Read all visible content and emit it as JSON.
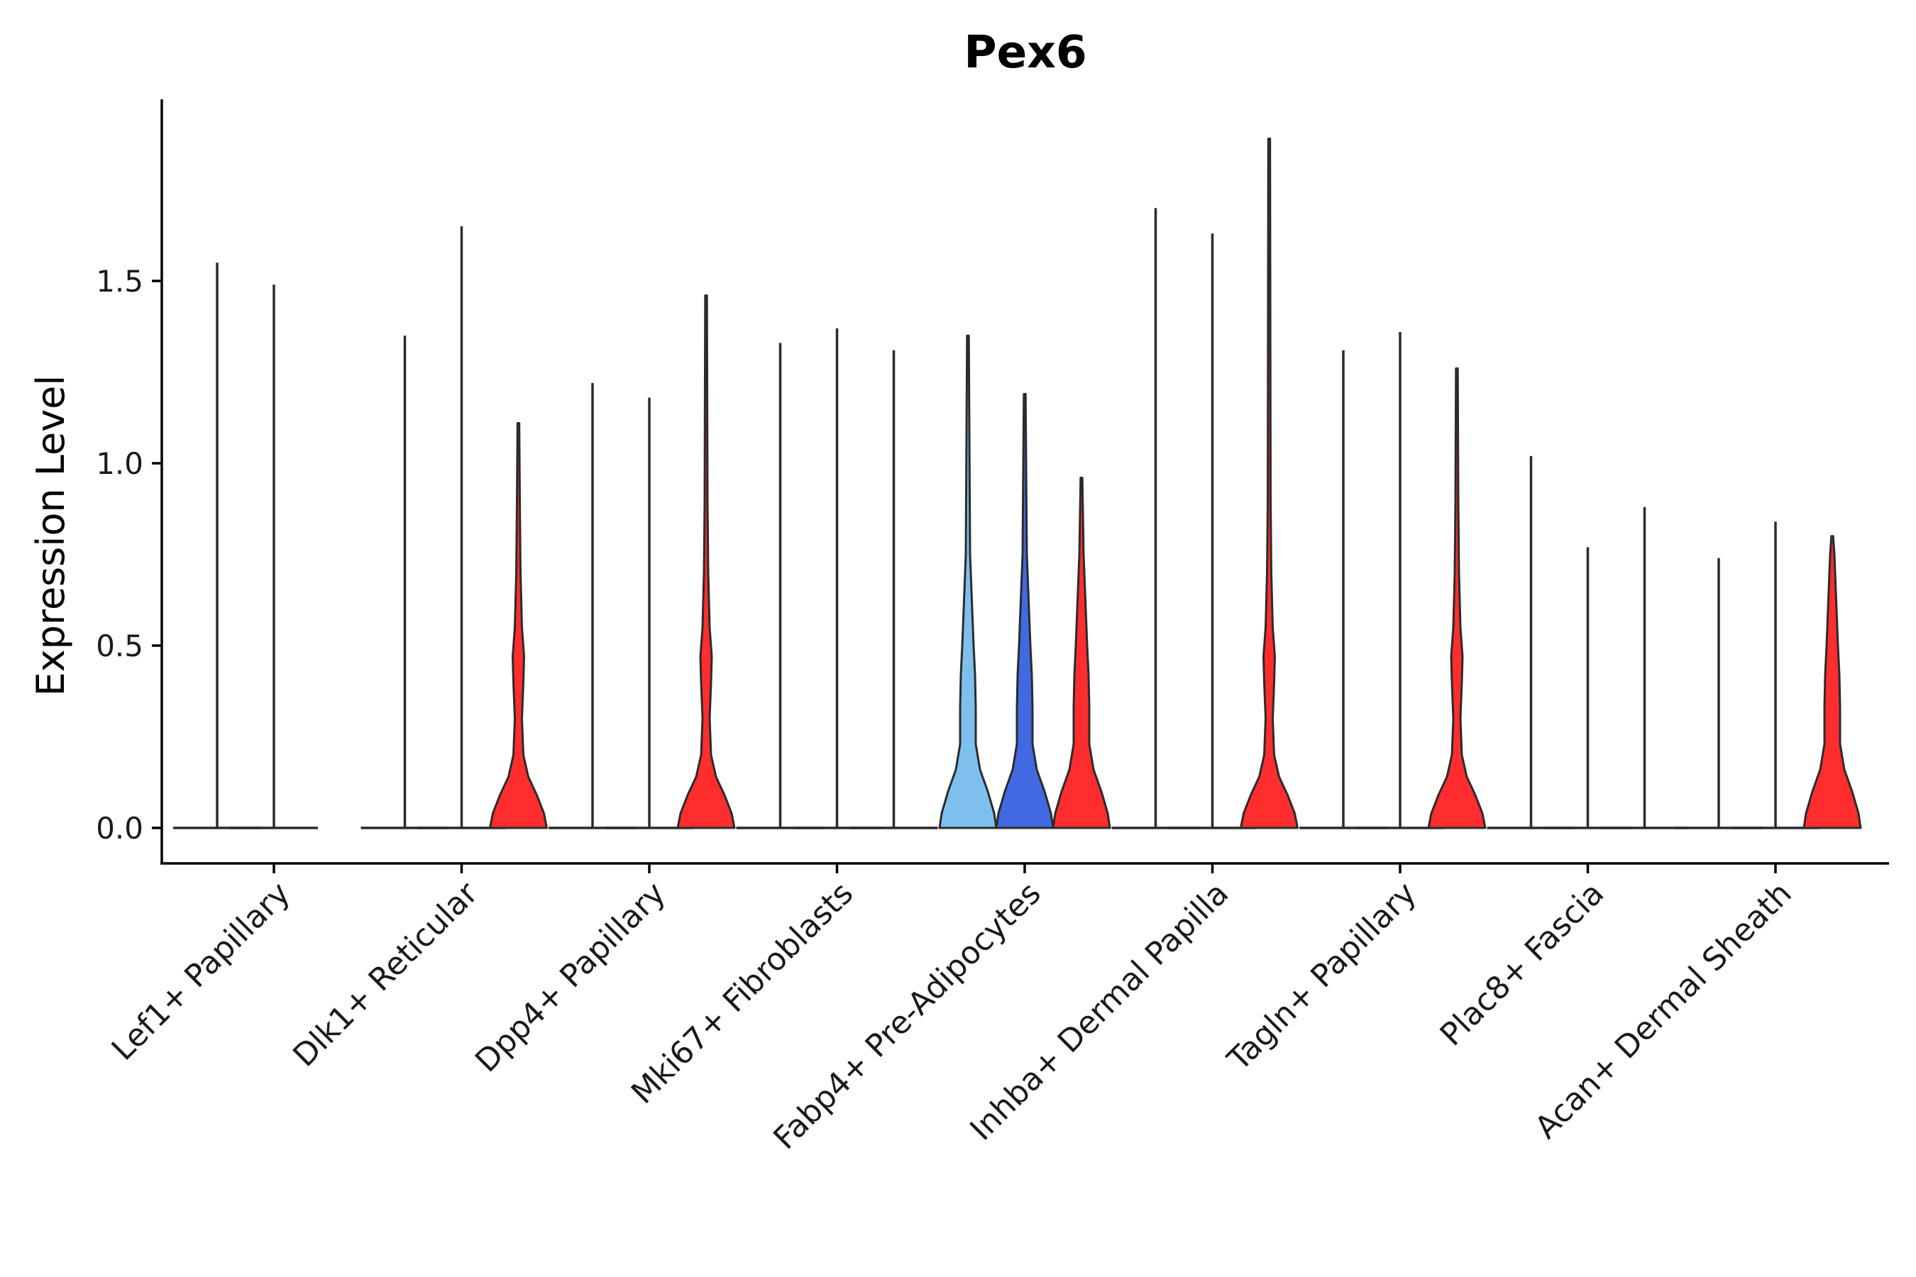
{
  "chart_data": {
    "type": "violin",
    "title": "Pex6",
    "xlabel": "",
    "ylabel": "Expression Level",
    "ylim": [
      -0.1,
      1.95
    ],
    "yticks": [
      0.0,
      0.5,
      1.0,
      1.5
    ],
    "ytick_labels": [
      "0.0",
      "0.5",
      "1.0",
      "1.5"
    ],
    "categories": [
      "Lef1+ Papillary",
      "Dlk1+ Reticular",
      "Dpp4+ Papillary",
      "Mki67+ Fibroblasts",
      "Fabp4+ Pre-Adipocytes",
      "Inhba+ Dermal Papilla",
      "Tagln+ Papillary",
      "Plac8+ Fascia",
      "Acan+ Dermal Sheath"
    ],
    "series_colors": [
      "#7fbfee",
      "#4169e1",
      "#ff2d2d"
    ],
    "violins": [
      {
        "group": "Lef1+ Papillary",
        "series": 0,
        "max": 1.55,
        "shape": "spike"
      },
      {
        "group": "Lef1+ Papillary",
        "series": 1,
        "max": 1.49,
        "shape": "spike"
      },
      {
        "group": "Dlk1+ Reticular",
        "series": 0,
        "max": 1.35,
        "shape": "spike"
      },
      {
        "group": "Dlk1+ Reticular",
        "series": 1,
        "max": 1.65,
        "shape": "spike"
      },
      {
        "group": "Dlk1+ Reticular",
        "series": 2,
        "max": 1.11,
        "shape": "bulb"
      },
      {
        "group": "Dpp4+ Papillary",
        "series": 0,
        "max": 1.22,
        "shape": "spike"
      },
      {
        "group": "Dpp4+ Papillary",
        "series": 1,
        "max": 1.18,
        "shape": "spike"
      },
      {
        "group": "Dpp4+ Papillary",
        "series": 2,
        "max": 1.46,
        "shape": "bulb"
      },
      {
        "group": "Mki67+ Fibroblasts",
        "series": 0,
        "max": 1.33,
        "shape": "spike"
      },
      {
        "group": "Mki67+ Fibroblasts",
        "series": 1,
        "max": 1.37,
        "shape": "spike"
      },
      {
        "group": "Mki67+ Fibroblasts",
        "series": 2,
        "max": 1.31,
        "shape": "spike"
      },
      {
        "group": "Fabp4+ Pre-Adipocytes",
        "series": 0,
        "max": 1.35,
        "shape": "wide"
      },
      {
        "group": "Fabp4+ Pre-Adipocytes",
        "series": 1,
        "max": 1.19,
        "shape": "wide"
      },
      {
        "group": "Fabp4+ Pre-Adipocytes",
        "series": 2,
        "max": 0.96,
        "shape": "wide"
      },
      {
        "group": "Inhba+ Dermal Papilla",
        "series": 0,
        "max": 1.7,
        "shape": "spike"
      },
      {
        "group": "Inhba+ Dermal Papilla",
        "series": 1,
        "max": 1.63,
        "shape": "spike"
      },
      {
        "group": "Inhba+ Dermal Papilla",
        "series": 2,
        "max": 1.89,
        "shape": "bulb"
      },
      {
        "group": "Tagln+ Papillary",
        "series": 0,
        "max": 1.31,
        "shape": "spike"
      },
      {
        "group": "Tagln+ Papillary",
        "series": 1,
        "max": 1.36,
        "shape": "spike"
      },
      {
        "group": "Tagln+ Papillary",
        "series": 2,
        "max": 1.26,
        "shape": "bulb"
      },
      {
        "group": "Plac8+ Fascia",
        "series": 0,
        "max": 1.02,
        "shape": "spike"
      },
      {
        "group": "Plac8+ Fascia",
        "series": 1,
        "max": 0.77,
        "shape": "spike"
      },
      {
        "group": "Plac8+ Fascia",
        "series": 2,
        "max": 0.88,
        "shape": "spike"
      },
      {
        "group": "Acan+ Dermal Sheath",
        "series": 0,
        "max": 0.74,
        "shape": "spike"
      },
      {
        "group": "Acan+ Dermal Sheath",
        "series": 1,
        "max": 0.84,
        "shape": "spike"
      },
      {
        "group": "Acan+ Dermal Sheath",
        "series": 2,
        "max": 0.8,
        "shape": "wide"
      }
    ],
    "grid": false,
    "legend": "none"
  }
}
